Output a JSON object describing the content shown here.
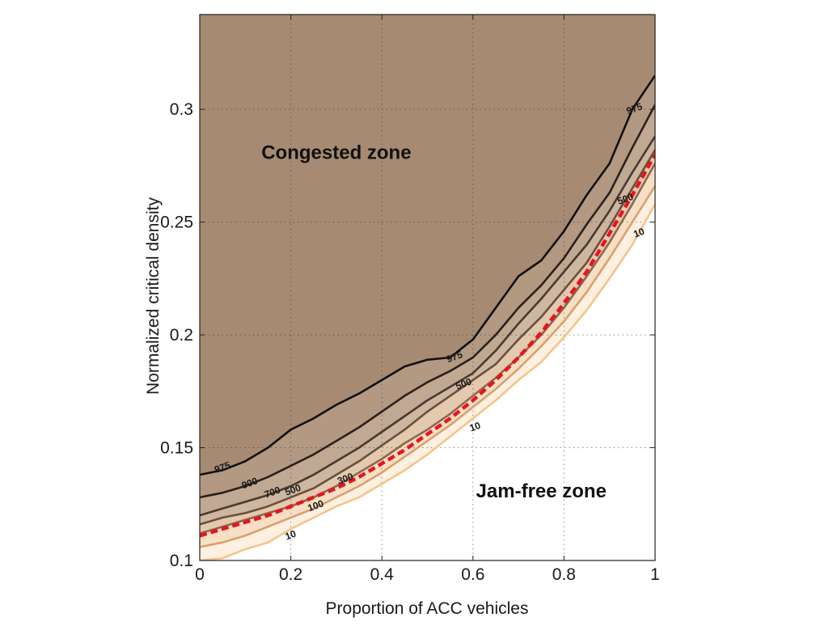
{
  "chart_data": {
    "type": "line",
    "title": "",
    "xlabel": "Proportion of ACC vehicles",
    "ylabel": "Normalized critical density",
    "xlim": [
      0,
      1
    ],
    "ylim": [
      0.1,
      0.342
    ],
    "xticks": [
      0,
      0.2,
      0.4,
      0.6,
      0.8,
      1
    ],
    "xtick_labels": [
      "0",
      "0.2",
      "0.4",
      "0.6",
      "0.8",
      "1"
    ],
    "yticks": [
      0.1,
      0.15,
      0.2,
      0.25,
      0.3
    ],
    "ytick_labels": [
      "0.1",
      "0.15",
      "0.2",
      "0.25",
      "0.3"
    ],
    "grid": true,
    "annotations": [
      {
        "text": "Congested zone",
        "x": 0.3,
        "y": 0.278
      },
      {
        "text": "Jam-free zone",
        "x": 0.75,
        "y": 0.128
      }
    ],
    "colors": {
      "congested_fill": "#a68b72",
      "dashed_line": "#e8141e"
    },
    "series": [
      {
        "label": "975",
        "color": "#111111",
        "x": [
          0,
          0.05,
          0.1,
          0.15,
          0.2,
          0.25,
          0.3,
          0.35,
          0.4,
          0.45,
          0.5,
          0.55,
          0.6,
          0.65,
          0.7,
          0.75,
          0.8,
          0.85,
          0.9,
          0.95,
          1
        ],
        "y": [
          0.138,
          0.14,
          0.144,
          0.15,
          0.158,
          0.163,
          0.169,
          0.174,
          0.18,
          0.186,
          0.189,
          0.19,
          0.198,
          0.212,
          0.226,
          0.233,
          0.246,
          0.262,
          0.276,
          0.3,
          0.315
        ]
      },
      {
        "label": "900",
        "color": "#2a211b",
        "x": [
          0,
          0.05,
          0.1,
          0.15,
          0.2,
          0.25,
          0.3,
          0.35,
          0.4,
          0.45,
          0.5,
          0.55,
          0.6,
          0.65,
          0.7,
          0.75,
          0.8,
          0.85,
          0.9,
          0.95,
          1
        ],
        "y": [
          0.128,
          0.13,
          0.133,
          0.137,
          0.142,
          0.147,
          0.153,
          0.159,
          0.166,
          0.173,
          0.179,
          0.184,
          0.19,
          0.2,
          0.212,
          0.222,
          0.234,
          0.249,
          0.263,
          0.283,
          0.302
        ]
      },
      {
        "label": "700",
        "color": "#4a3a2e",
        "x": [
          0,
          0.05,
          0.1,
          0.15,
          0.2,
          0.25,
          0.3,
          0.35,
          0.4,
          0.45,
          0.5,
          0.55,
          0.6,
          0.65,
          0.7,
          0.75,
          0.8,
          0.85,
          0.9,
          0.95,
          1
        ],
        "y": [
          0.12,
          0.123,
          0.126,
          0.129,
          0.133,
          0.138,
          0.144,
          0.15,
          0.157,
          0.164,
          0.171,
          0.177,
          0.183,
          0.193,
          0.205,
          0.216,
          0.228,
          0.24,
          0.255,
          0.272,
          0.288
        ]
      },
      {
        "label": "500",
        "color": "#6b4e3c",
        "x": [
          0,
          0.05,
          0.1,
          0.15,
          0.2,
          0.25,
          0.3,
          0.35,
          0.4,
          0.45,
          0.5,
          0.55,
          0.6,
          0.65,
          0.7,
          0.75,
          0.8,
          0.85,
          0.9,
          0.95,
          1
        ],
        "y": [
          0.116,
          0.119,
          0.121,
          0.124,
          0.128,
          0.132,
          0.138,
          0.144,
          0.151,
          0.158,
          0.166,
          0.173,
          0.18,
          0.187,
          0.198,
          0.208,
          0.22,
          0.232,
          0.248,
          0.265,
          0.282
        ]
      },
      {
        "label": "300",
        "color": "#8c6750",
        "x": [
          0,
          0.05,
          0.1,
          0.15,
          0.2,
          0.25,
          0.3,
          0.35,
          0.4,
          0.45,
          0.5,
          0.55,
          0.6,
          0.65,
          0.7,
          0.75,
          0.8,
          0.85,
          0.9,
          0.95,
          1
        ],
        "y": [
          0.112,
          0.115,
          0.118,
          0.121,
          0.124,
          0.128,
          0.133,
          0.139,
          0.145,
          0.152,
          0.158,
          0.165,
          0.173,
          0.181,
          0.19,
          0.2,
          0.212,
          0.226,
          0.241,
          0.258,
          0.276
        ]
      },
      {
        "label": "100",
        "color": "#d8a070",
        "x": [
          0,
          0.05,
          0.1,
          0.15,
          0.2,
          0.25,
          0.3,
          0.35,
          0.4,
          0.45,
          0.5,
          0.55,
          0.6,
          0.65,
          0.7,
          0.75,
          0.8,
          0.85,
          0.9,
          0.95,
          1
        ],
        "y": [
          0.106,
          0.108,
          0.111,
          0.115,
          0.119,
          0.123,
          0.128,
          0.133,
          0.139,
          0.146,
          0.153,
          0.16,
          0.168,
          0.176,
          0.185,
          0.195,
          0.206,
          0.219,
          0.234,
          0.25,
          0.266
        ]
      },
      {
        "label": "10",
        "color": "#f5c48a",
        "x": [
          0,
          0.05,
          0.1,
          0.15,
          0.2,
          0.25,
          0.3,
          0.35,
          0.4,
          0.45,
          0.5,
          0.55,
          0.6,
          0.65,
          0.7,
          0.75,
          0.8,
          0.85,
          0.9,
          0.95,
          1
        ],
        "y": [
          0.1,
          0.101,
          0.105,
          0.108,
          0.114,
          0.119,
          0.124,
          0.128,
          0.134,
          0.14,
          0.147,
          0.155,
          0.163,
          0.171,
          0.18,
          0.188,
          0.199,
          0.211,
          0.225,
          0.24,
          0.258
        ]
      },
      {
        "label": "",
        "color": "#e8141e",
        "style": "dashed",
        "x": [
          0,
          0.05,
          0.1,
          0.15,
          0.2,
          0.25,
          0.3,
          0.35,
          0.4,
          0.45,
          0.5,
          0.55,
          0.6,
          0.65,
          0.7,
          0.75,
          0.8,
          0.85,
          0.9,
          0.95,
          1
        ],
        "y": [
          0.111,
          0.114,
          0.117,
          0.12,
          0.124,
          0.128,
          0.132,
          0.137,
          0.143,
          0.149,
          0.156,
          0.163,
          0.171,
          0.18,
          0.19,
          0.201,
          0.214,
          0.228,
          0.245,
          0.262,
          0.28
        ]
      }
    ],
    "contour_labels": [
      {
        "text": "975",
        "x": 0.05,
        "y": 0.141
      },
      {
        "text": "900",
        "x": 0.11,
        "y": 0.134
      },
      {
        "text": "700",
        "x": 0.16,
        "y": 0.13
      },
      {
        "text": "500",
        "x": 0.205,
        "y": 0.131
      },
      {
        "text": "300",
        "x": 0.32,
        "y": 0.136
      },
      {
        "text": "100",
        "x": 0.255,
        "y": 0.124
      },
      {
        "text": "10",
        "x": 0.2,
        "y": 0.111
      },
      {
        "text": "975",
        "x": 0.56,
        "y": 0.19
      },
      {
        "text": "500",
        "x": 0.58,
        "y": 0.178
      },
      {
        "text": "10",
        "x": 0.605,
        "y": 0.159
      },
      {
        "text": "975",
        "x": 0.955,
        "y": 0.3
      },
      {
        "text": "500",
        "x": 0.935,
        "y": 0.26
      },
      {
        "text": "10",
        "x": 0.965,
        "y": 0.245
      }
    ]
  }
}
